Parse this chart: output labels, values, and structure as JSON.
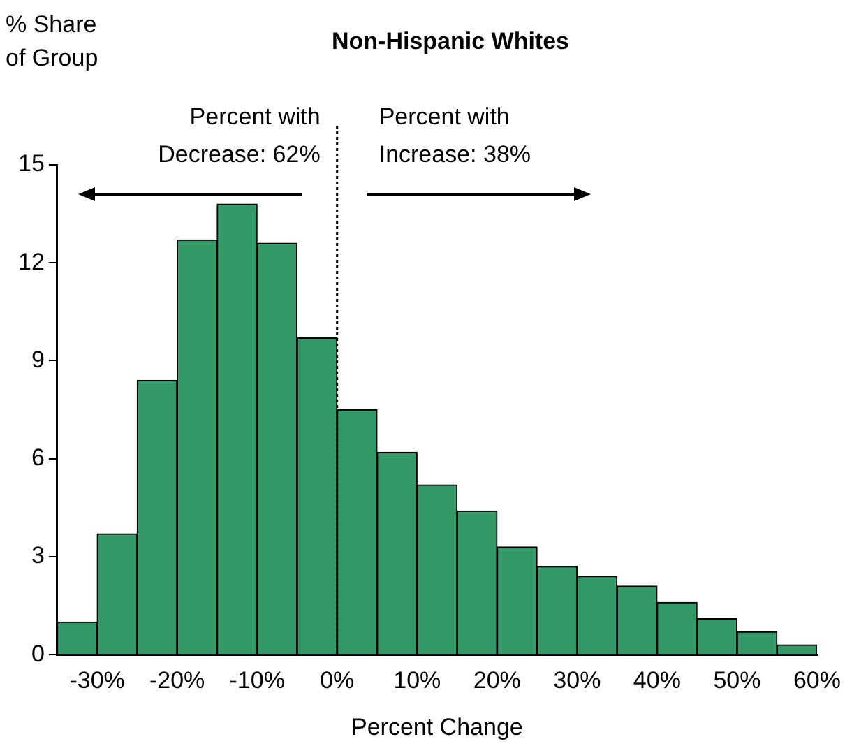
{
  "chart_data": {
    "type": "histogram",
    "title": "Non-Hispanic Whites",
    "ylabel": "% Share of Group",
    "xlabel": "Percent Change",
    "bins": [
      -35,
      -30,
      -25,
      -20,
      -15,
      -10,
      -5,
      0,
      5,
      10,
      15,
      20,
      25,
      30,
      35,
      40,
      45,
      50,
      55,
      60
    ],
    "values": [
      1.0,
      3.7,
      8.4,
      12.7,
      13.8,
      12.6,
      9.7,
      7.5,
      6.2,
      5.2,
      4.4,
      3.3,
      2.7,
      2.4,
      2.1,
      1.6,
      1.1,
      0.7,
      0.3
    ],
    "color": "#339966",
    "xlim": [
      -35,
      60
    ],
    "xticks": [
      {
        "value": -30,
        "label": "-30%"
      },
      {
        "value": -20,
        "label": "-20%"
      },
      {
        "value": -10,
        "label": "-10%"
      },
      {
        "value": 0,
        "label": "0%"
      },
      {
        "value": 10,
        "label": "10%"
      },
      {
        "value": 20,
        "label": "20%"
      },
      {
        "value": 30,
        "label": "30%"
      },
      {
        "value": 40,
        "label": "40%"
      },
      {
        "value": 50,
        "label": "50%"
      },
      {
        "value": 60,
        "label": "60%"
      }
    ],
    "ylim": [
      0,
      15
    ],
    "yticks": [
      0,
      3,
      6,
      9,
      12,
      15
    ],
    "grid": false,
    "legend": false,
    "ref_lines": [
      {
        "axis": "x",
        "value": 0,
        "line_style": "dotted",
        "color": "#000000"
      }
    ],
    "annotations": [
      "Percent with Decrease: 62%",
      "Percent with Increase: 38%"
    ]
  }
}
